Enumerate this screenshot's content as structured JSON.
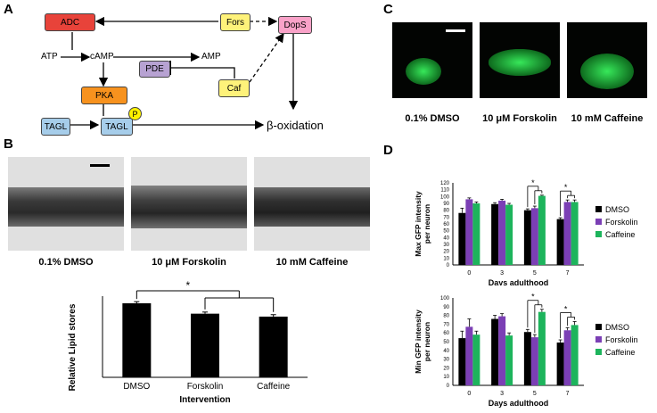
{
  "panel_labels": {
    "a": "A",
    "b": "B",
    "c": "C",
    "d": "D"
  },
  "pathway": {
    "adc": "ADC",
    "fors": "Fors",
    "dops": "DopS",
    "atp": "ATP",
    "camp": "cAMP",
    "amp": "AMP",
    "pde": "PDE",
    "pka": "PKA",
    "caf": "Caf",
    "tagl1": "TAGL",
    "tagl2": "TAGL",
    "p": "P",
    "beta_ox": "β-oxidation",
    "colors": {
      "adc": "#e8433a",
      "fors": "#fef27a",
      "dops": "#f9a2c8",
      "pde": "#b7a2d2",
      "pka": "#f7921e",
      "caf": "#fef27a",
      "tagl": "#a6cdea",
      "p": "#fef200"
    }
  },
  "microscopy_captions": [
    "0.1% DMSO",
    "10 μM Forskolin",
    "10 mM Caffeine"
  ],
  "gfp_captions": [
    "0.1% DMSO",
    "10 μM Forskolin",
    "10 mM Caffeine"
  ],
  "chart_data": [
    {
      "type": "bar",
      "categories": [
        "DMSO",
        "Forskolin",
        "Caffeine"
      ],
      "values": [
        228,
        196,
        187
      ],
      "errors": [
        5,
        5,
        6
      ],
      "xlabel": "Intervention",
      "ylabel": "Relative Lipid stores",
      "ylim": [
        0,
        250
      ],
      "significance": "*",
      "color": "#000000"
    },
    {
      "type": "bar",
      "categories": [
        "0",
        "3",
        "5",
        "7"
      ],
      "series": [
        {
          "name": "DMSO",
          "values": [
            76,
            89,
            80,
            67
          ],
          "errors": [
            7,
            2,
            2,
            2
          ]
        },
        {
          "name": "Forskolin",
          "values": [
            96,
            94,
            83,
            92
          ],
          "errors": [
            2,
            2,
            3,
            3
          ]
        },
        {
          "name": "Caffeine",
          "values": [
            90,
            88,
            101,
            92
          ],
          "errors": [
            2,
            2,
            1,
            3
          ]
        }
      ],
      "colors": [
        "#000000",
        "#7b3fb5",
        "#1db45c"
      ],
      "ylim": [
        0,
        120
      ],
      "yticks": [
        0,
        10,
        20,
        30,
        40,
        50,
        60,
        70,
        80,
        90,
        100,
        110,
        120
      ],
      "xlabel": "Days adulthood",
      "ylabel": "Max GFP intensity per neuron",
      "significance": [
        "*",
        "*"
      ],
      "legend": "right"
    },
    {
      "type": "bar",
      "categories": [
        "0",
        "3",
        "5",
        "7"
      ],
      "series": [
        {
          "name": "DMSO",
          "values": [
            54,
            76,
            61,
            49
          ],
          "errors": [
            8,
            4,
            3,
            3
          ]
        },
        {
          "name": "Forskolin",
          "values": [
            67,
            79,
            55,
            63
          ],
          "errors": [
            9,
            3,
            3,
            3
          ]
        },
        {
          "name": "Caffeine",
          "values": [
            58,
            57,
            84,
            69
          ],
          "errors": [
            4,
            3,
            3,
            4
          ]
        }
      ],
      "colors": [
        "#000000",
        "#7b3fb5",
        "#1db45c"
      ],
      "ylim": [
        0,
        100
      ],
      "yticks": [
        0,
        10,
        20,
        30,
        40,
        50,
        60,
        70,
        80,
        90,
        100
      ],
      "xlabel": "Days adulthood",
      "ylabel": "Min GFP intensity per neuron",
      "significance": [
        "*",
        "*"
      ],
      "legend": "right"
    }
  ]
}
